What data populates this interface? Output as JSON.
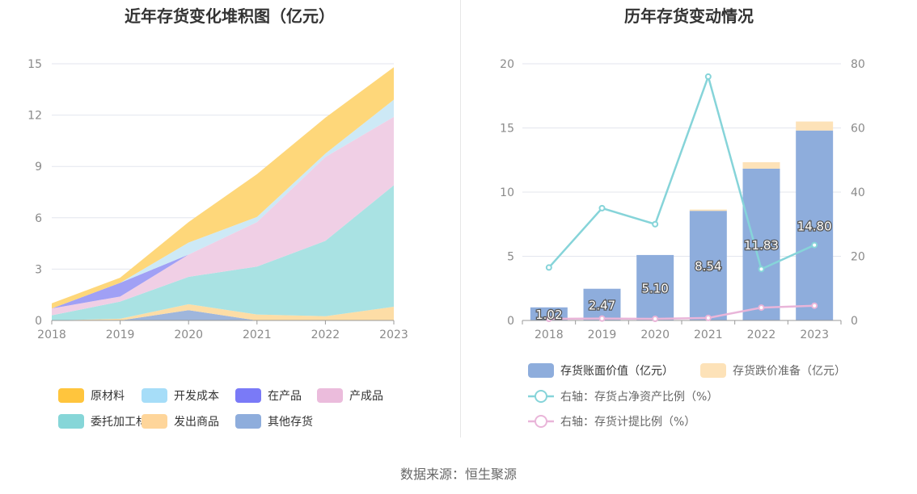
{
  "chart_data": [
    {
      "type": "area",
      "title": "近年存货变化堆积图（亿元）",
      "x": [
        "2018",
        "2019",
        "2020",
        "2021",
        "2022",
        "2023"
      ],
      "ylim": [
        0,
        15
      ],
      "yticks": [
        "0",
        "3",
        "6",
        "9",
        "12",
        "15"
      ],
      "stack_order_bottom_to_top": [
        "其他存货",
        "发出商品",
        "委托加工材料",
        "产成品",
        "在产品",
        "开发成本",
        "原材料"
      ],
      "series": [
        {
          "name": "其他存货",
          "color": "#9fb6dc",
          "values": [
            0,
            0,
            0.6,
            0,
            0,
            0
          ]
        },
        {
          "name": "发出商品",
          "color": "#fddda6",
          "values": [
            0,
            0.1,
            0.35,
            0.35,
            0.25,
            0.8
          ]
        },
        {
          "name": "委托加工材料",
          "color": "#a9e2e3",
          "values": [
            0.3,
            1.0,
            1.6,
            2.8,
            4.4,
            7.1
          ]
        },
        {
          "name": "产成品",
          "color": "#f0cfe5",
          "values": [
            0.4,
            0.3,
            1.3,
            2.6,
            4.9,
            4.0
          ]
        },
        {
          "name": "在产品",
          "color": "#a0a0f5",
          "values": [
            0,
            0.8,
            0,
            0,
            0,
            0
          ]
        },
        {
          "name": "开发成本",
          "color": "#cde9f6",
          "values": [
            0,
            0,
            0.7,
            0.3,
            0.2,
            1.0
          ]
        },
        {
          "name": "原材料",
          "color": "#fed77a",
          "values": [
            0.3,
            0.3,
            1.2,
            2.5,
            2.1,
            1.9
          ]
        }
      ],
      "legend": [
        {
          "name": "原材料",
          "color": "#ffc53d"
        },
        {
          "name": "开发成本",
          "color": "#a6ddf8"
        },
        {
          "name": "在产品",
          "color": "#7a7af7"
        },
        {
          "name": "产成品",
          "color": "#ebbcdc"
        },
        {
          "name": "委托加工材料",
          "color": "#86d6d8"
        },
        {
          "name": "发出商品",
          "color": "#fed59a"
        },
        {
          "name": "其他存货",
          "color": "#8eaddc"
        }
      ]
    },
    {
      "type": "bar",
      "title": "历年存货变动情况",
      "categories": [
        "2018",
        "2019",
        "2020",
        "2021",
        "2022",
        "2023"
      ],
      "ylim": [
        0,
        20
      ],
      "yticks": [
        "0",
        "5",
        "10",
        "15",
        "20"
      ],
      "y2lim": [
        0,
        80
      ],
      "y2ticks": [
        "0",
        "20",
        "40",
        "60",
        "80"
      ],
      "series": [
        {
          "name": "存货账面价值（亿元）",
          "color": "#8eaddc",
          "values": [
            1.02,
            2.47,
            5.1,
            8.54,
            11.83,
            14.8
          ],
          "labels": [
            "1.02",
            "2.47",
            "5.10",
            "8.54",
            "11.83",
            "14.80"
          ]
        },
        {
          "name": "存货跌价准备（亿元）",
          "color": "#fde2b8",
          "values": [
            0,
            0,
            0,
            0.1,
            0.5,
            0.7
          ]
        },
        {
          "name": "右轴：存货占净资产比例（%）",
          "color": "#86d4d9",
          "type": "line",
          "axis": "right",
          "values": [
            16.5,
            35,
            30,
            76,
            16,
            23.5
          ]
        },
        {
          "name": "右轴：存货计提比例（%）",
          "color": "#e9b5d9",
          "type": "line",
          "axis": "right",
          "values": [
            0.5,
            0.6,
            0.5,
            0.8,
            4,
            4.6
          ]
        }
      ]
    }
  ],
  "footer": {
    "source": "数据来源：恒生聚源"
  }
}
